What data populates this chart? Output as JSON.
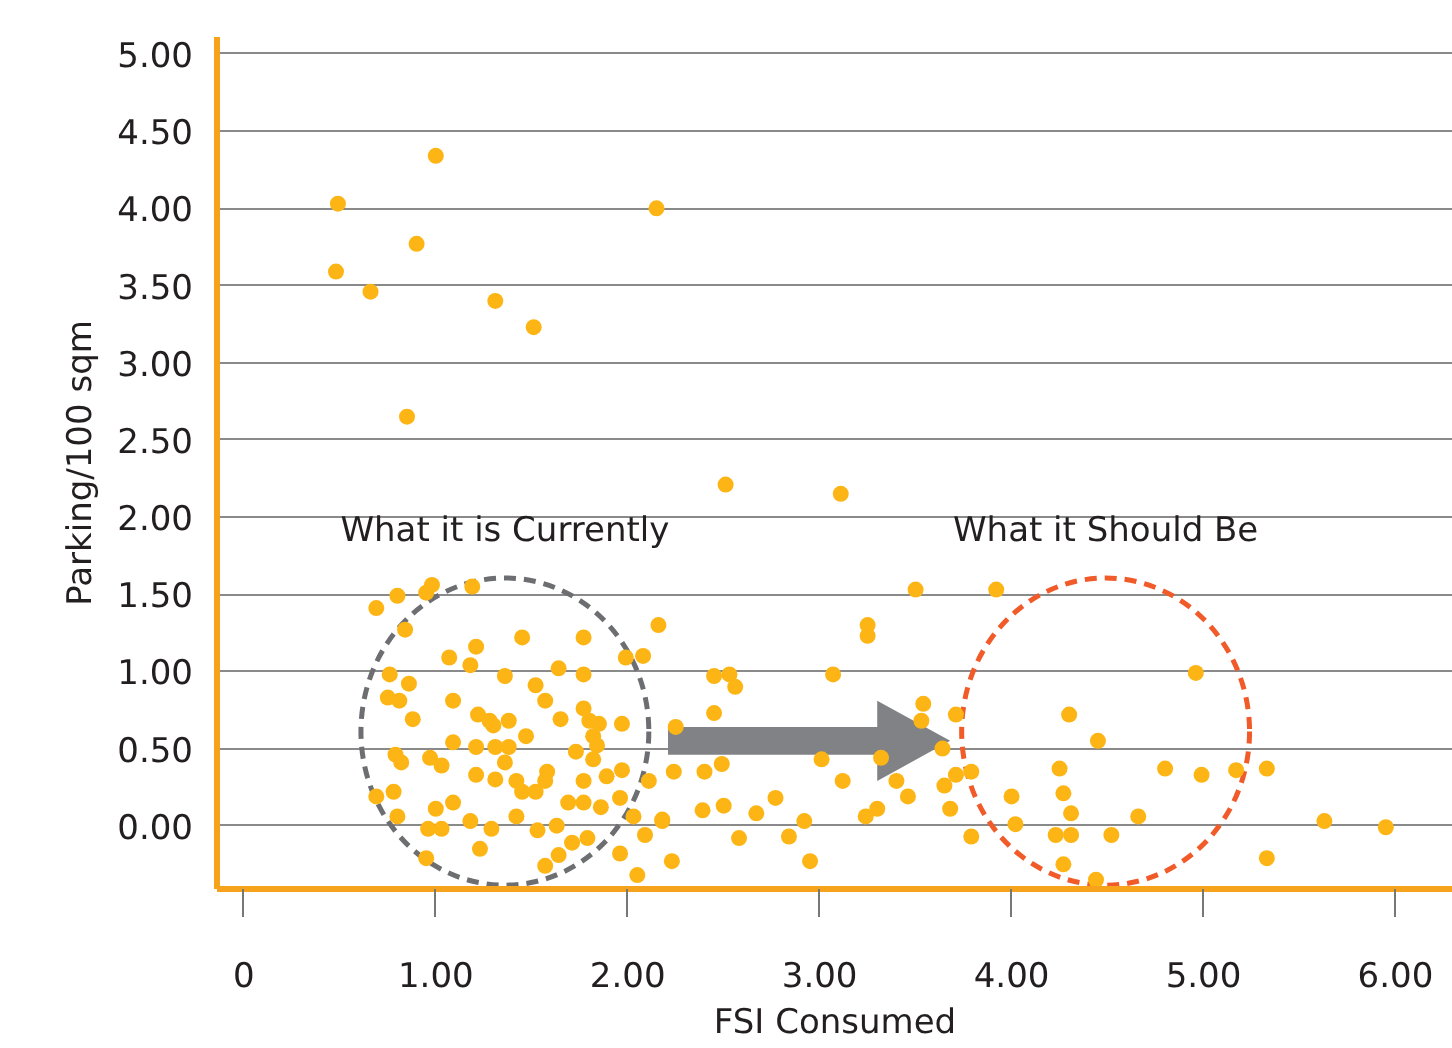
{
  "chart_data": {
    "type": "scatter",
    "xlabel": "FSI Consumed",
    "ylabel": "Parking/100 sqm",
    "xlim": [
      -0.14,
      6.3
    ],
    "ylim": [
      -0.41,
      5.11
    ],
    "xticks": [
      {
        "value": 0,
        "label": "0"
      },
      {
        "value": 1,
        "label": "1.00"
      },
      {
        "value": 2,
        "label": "2.00"
      },
      {
        "value": 3,
        "label": "3.00"
      },
      {
        "value": 4,
        "label": "4.00"
      },
      {
        "value": 5,
        "label": "5.00"
      },
      {
        "value": 6,
        "label": "6.00"
      }
    ],
    "yticks": [
      {
        "value": 0,
        "label": "0.00"
      },
      {
        "value": 0.5,
        "label": "0.50"
      },
      {
        "value": 1,
        "label": "1.00"
      },
      {
        "value": 1.5,
        "label": "1.50"
      },
      {
        "value": 2,
        "label": "2.00"
      },
      {
        "value": 2.5,
        "label": "2.50"
      },
      {
        "value": 3,
        "label": "3.00"
      },
      {
        "value": 3.5,
        "label": "3.50"
      },
      {
        "value": 4,
        "label": "4.00"
      },
      {
        "value": 4.5,
        "label": "4.50"
      },
      {
        "value": 5,
        "label": "5.00"
      }
    ],
    "grid": "y",
    "marker": "circle",
    "annotations": [
      "What it is Currently",
      "What it Should Be"
    ],
    "series": [
      {
        "color": "#fdb515",
        "x": [
          0.49,
          0.48,
          0.66,
          0.9,
          1.0,
          0.85,
          1.31,
          1.51,
          2.15,
          2.51,
          3.11,
          3.5,
          3.92,
          3.25,
          3.25,
          2.45,
          2.53,
          2.56,
          3.07,
          2.45,
          3.54,
          3.53,
          3.71,
          3.64,
          2.24,
          2.4,
          2.49,
          3.01,
          3.12,
          3.32,
          3.4,
          3.46,
          3.65,
          3.71,
          3.79,
          3.68,
          2.39,
          2.5,
          2.67,
          2.77,
          2.18,
          2.58,
          2.84,
          2.92,
          3.24,
          3.3,
          2.23,
          2.95,
          3.79,
          4.0,
          4.02,
          4.25,
          4.27,
          4.31,
          4.23,
          4.31,
          4.27,
          4.44,
          4.52,
          4.66,
          4.3,
          4.45,
          4.8,
          4.99,
          4.96,
          5.17,
          5.33,
          5.33,
          5.63,
          5.95,
          0.69,
          0.8,
          0.84,
          0.95,
          0.98,
          1.19,
          1.21,
          1.07,
          1.18,
          1.45,
          1.77,
          2.16,
          1.99,
          2.08,
          0.76,
          0.86,
          0.75,
          0.81,
          0.88,
          1.09,
          1.36,
          1.52,
          1.64,
          1.77,
          1.57,
          1.65,
          1.77,
          1.8,
          1.85,
          1.97,
          1.22,
          1.28,
          1.3,
          1.38,
          1.09,
          1.47,
          1.21,
          1.31,
          1.38,
          1.82,
          1.84,
          0.79,
          0.82,
          0.97,
          1.03,
          1.21,
          1.31,
          1.36,
          1.42,
          1.45,
          1.52,
          1.57,
          1.58,
          1.73,
          1.77,
          1.82,
          1.89,
          1.97,
          2.11,
          2.25,
          0.69,
          0.78,
          0.8,
          1.0,
          1.09,
          0.96,
          1.03,
          1.18,
          1.29,
          1.42,
          1.53,
          1.63,
          1.69,
          1.77,
          1.86,
          1.96,
          2.03,
          2.18,
          1.23,
          1.71,
          1.79,
          1.64,
          1.57,
          1.96,
          2.09,
          2.05,
          0.95
        ],
        "values": [
          4.03,
          3.59,
          3.46,
          3.77,
          4.34,
          2.65,
          3.4,
          3.23,
          4.0,
          2.21,
          2.15,
          1.53,
          1.53,
          1.3,
          1.23,
          0.97,
          0.98,
          0.9,
          0.98,
          0.73,
          0.79,
          0.68,
          0.72,
          0.5,
          0.35,
          0.35,
          0.4,
          0.43,
          0.29,
          0.44,
          0.29,
          0.19,
          0.26,
          0.33,
          0.35,
          0.11,
          0.1,
          0.13,
          0.08,
          0.18,
          0.04,
          -0.08,
          -0.07,
          0.03,
          0.06,
          0.11,
          -0.23,
          -0.23,
          -0.07,
          0.19,
          0.01,
          0.37,
          0.21,
          0.08,
          -0.06,
          -0.06,
          -0.25,
          -0.35,
          -0.06,
          0.06,
          0.72,
          0.55,
          0.37,
          0.33,
          0.99,
          0.36,
          0.37,
          -0.21,
          0.03,
          -0.01,
          1.41,
          1.49,
          1.27,
          1.51,
          1.56,
          1.55,
          1.16,
          1.09,
          1.04,
          1.22,
          1.22,
          1.3,
          1.09,
          1.1,
          0.98,
          0.92,
          0.83,
          0.81,
          0.69,
          0.81,
          0.97,
          0.91,
          1.02,
          0.98,
          0.81,
          0.69,
          0.76,
          0.68,
          0.66,
          0.66,
          0.72,
          0.68,
          0.65,
          0.68,
          0.54,
          0.58,
          0.51,
          0.51,
          0.51,
          0.58,
          0.52,
          0.46,
          0.41,
          0.44,
          0.39,
          0.33,
          0.3,
          0.41,
          0.29,
          0.22,
          0.22,
          0.29,
          0.35,
          0.48,
          0.29,
          0.43,
          0.32,
          0.36,
          0.29,
          0.64,
          0.19,
          0.22,
          0.06,
          0.11,
          0.15,
          -0.02,
          -0.02,
          0.03,
          -0.02,
          0.06,
          -0.03,
          0.0,
          0.15,
          0.15,
          0.12,
          0.18,
          0.06,
          0.03,
          -0.15,
          -0.11,
          -0.08,
          -0.19,
          -0.26,
          -0.18,
          -0.06,
          -0.32,
          -0.21
        ]
      }
    ]
  }
}
